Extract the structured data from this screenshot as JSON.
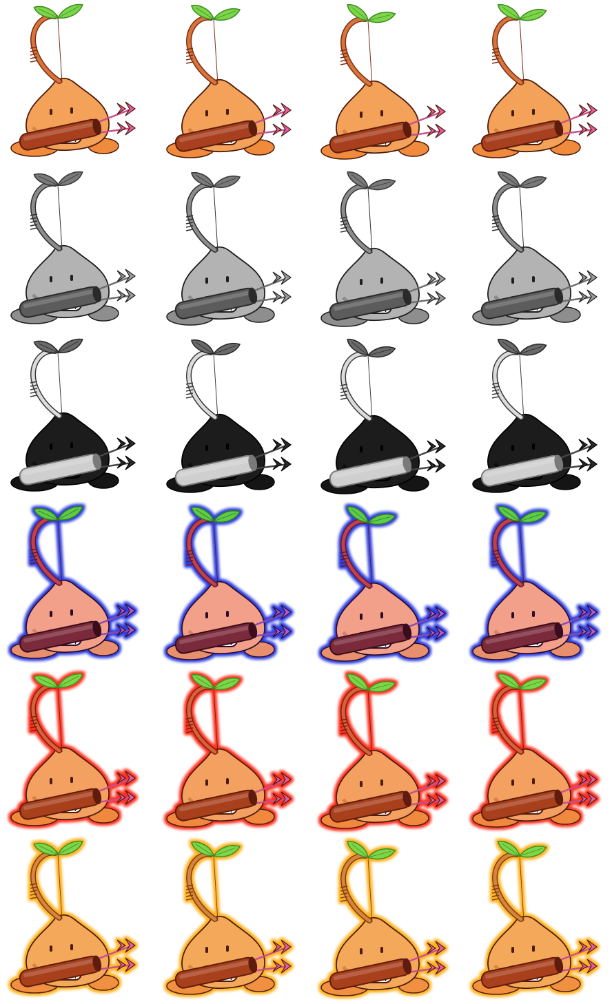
{
  "sprite_sheet": {
    "character": "seed-archer-sprite",
    "frames_per_row": 4,
    "rows": [
      {
        "variant": "normal",
        "colors": {
          "leaf": "#7dd64a",
          "leaf_dark": "#3f8f22",
          "bow": "#d9743a",
          "bow_dark": "#7a2e14",
          "body": "#f4a25a",
          "body_dark": "#b75a23",
          "feet": "#f08a3c",
          "quiver": "#a8401f",
          "quiver_dark": "#5e1d0c",
          "arrow": "#c94f8c",
          "fletch": "#e45d9c",
          "mouth": "#ffffff",
          "line": "#4a1a0a",
          "glow": "none"
        }
      },
      {
        "variant": "grayscale",
        "colors": {
          "leaf": "#7a7a7a",
          "leaf_dark": "#3a3a3a",
          "bow": "#8c8c8c",
          "bow_dark": "#2e2e2e",
          "body": "#b3b3b3",
          "body_dark": "#5a5a5a",
          "feet": "#8e8e8e",
          "quiver": "#5c5c5c",
          "quiver_dark": "#2a2a2a",
          "arrow": "#6e6e6e",
          "fletch": "#9a9a9a",
          "mouth": "#ffffff",
          "line": "#1e1e1e",
          "glow": "none"
        }
      },
      {
        "variant": "inverted-silhouette",
        "colors": {
          "leaf": "#6a6a6a",
          "leaf_dark": "#2a2a2a",
          "bow": "#dcdcdc",
          "bow_dark": "#3a3a3a",
          "body": "#1c1c1c",
          "body_dark": "#000000",
          "feet": "#151515",
          "quiver": "#cfcfcf",
          "quiver_dark": "#7a7a7a",
          "arrow": "#444444",
          "fletch": "#2b2b2b",
          "mouth": "#111111",
          "line": "#000000",
          "glow": "none"
        }
      },
      {
        "variant": "blue-glow",
        "colors": {
          "leaf": "#5ecb4a",
          "leaf_dark": "#2f7a22",
          "bow": "#c2404e",
          "bow_dark": "#5a1a2a",
          "body": "#f2a08a",
          "body_dark": "#b25a4a",
          "feet": "#e8906e",
          "quiver": "#7a2a3a",
          "quiver_dark": "#3a0e1a",
          "arrow": "#8a4ab0",
          "fletch": "#b05ad0",
          "mouth": "#ffffff",
          "line": "#2a0a2a",
          "glow": "#3040e0"
        }
      },
      {
        "variant": "red-glow",
        "colors": {
          "leaf": "#7dd64a",
          "leaf_dark": "#3f8f22",
          "bow": "#d8603a",
          "bow_dark": "#7a2010",
          "body": "#f4a060",
          "body_dark": "#b85a23",
          "feet": "#f0883c",
          "quiver": "#a8401f",
          "quiver_dark": "#5e1d0c",
          "arrow": "#c94f8c",
          "fletch": "#e45d9c",
          "mouth": "#ffffff",
          "line": "#4a1a0a",
          "glow": "#ff3020"
        }
      },
      {
        "variant": "gold-glow",
        "colors": {
          "leaf": "#7dd64a",
          "leaf_dark": "#3f8f22",
          "bow": "#d9843a",
          "bow_dark": "#7a3e14",
          "body": "#f4a85a",
          "body_dark": "#b86023",
          "feet": "#f09040",
          "quiver": "#a8401f",
          "quiver_dark": "#5e1d0c",
          "arrow": "#c94f8c",
          "fletch": "#e45d9c",
          "mouth": "#ffffff",
          "line": "#4a1a0a",
          "glow": "#ffb020"
        }
      }
    ],
    "frames": [
      {
        "pose": "idle-1"
      },
      {
        "pose": "idle-2"
      },
      {
        "pose": "idle-3"
      },
      {
        "pose": "idle-4"
      }
    ]
  }
}
